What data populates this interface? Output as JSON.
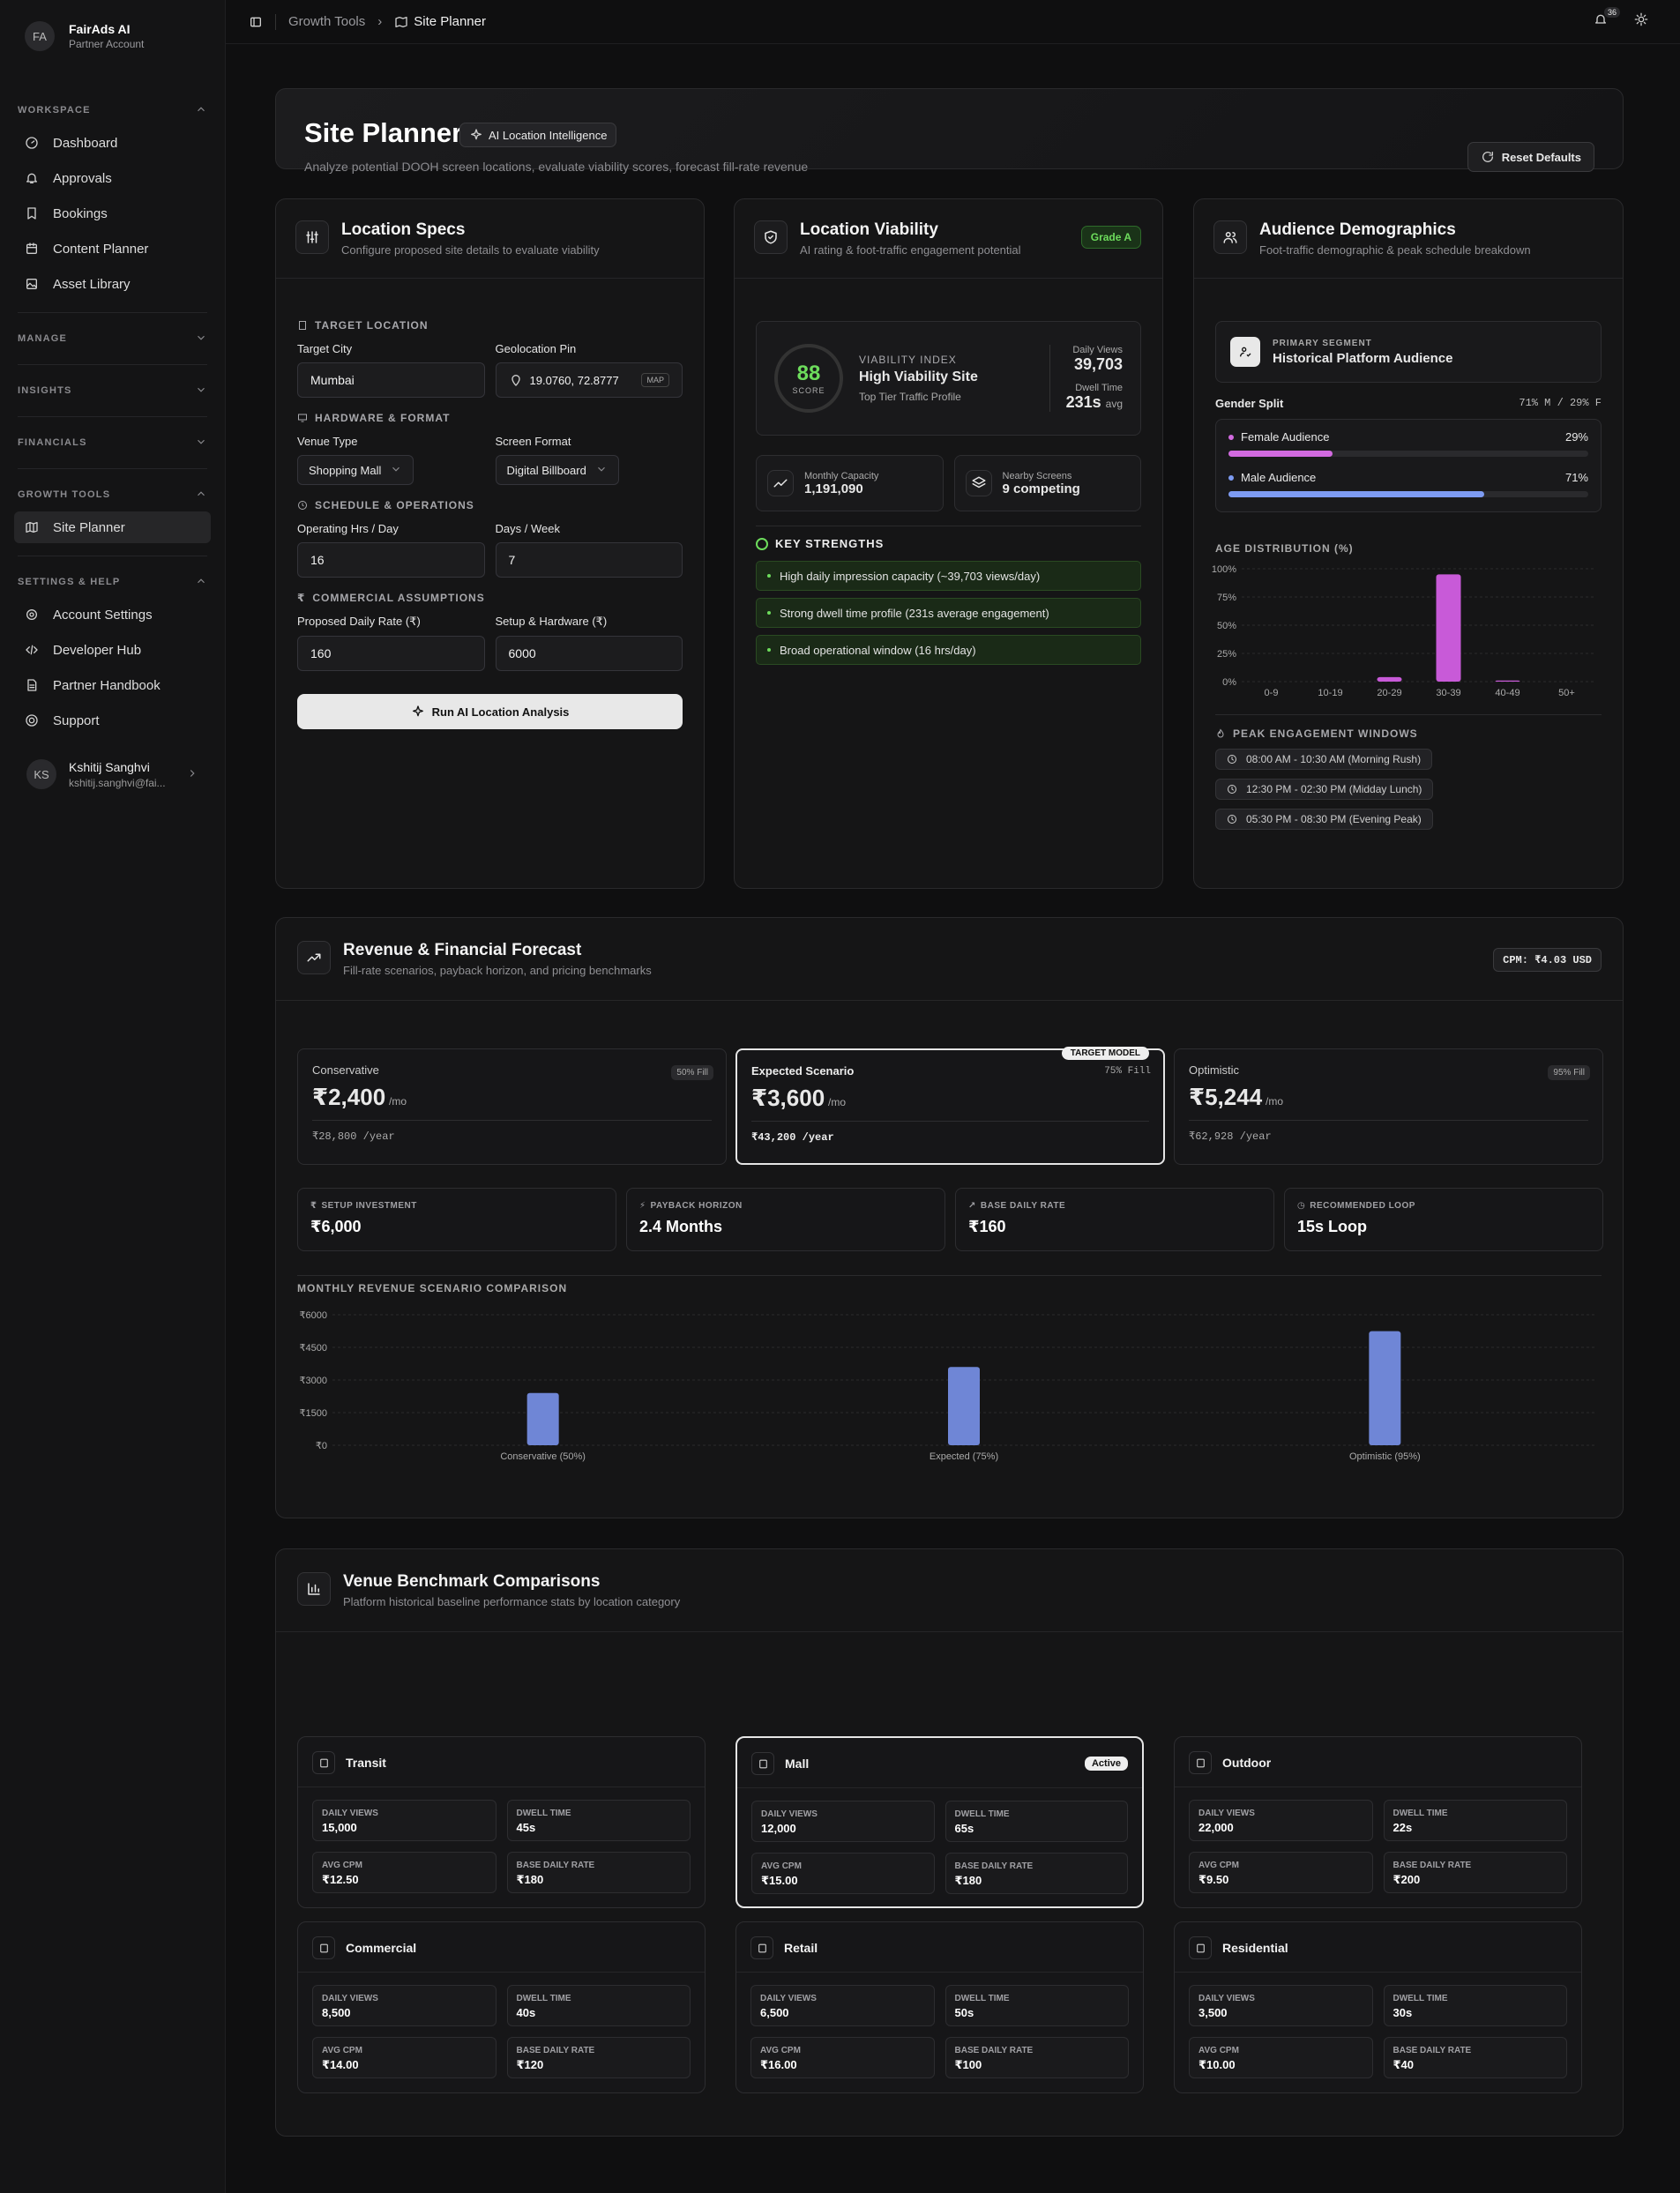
{
  "sidebar": {
    "brand_initials": "FA",
    "brand": "FairAds AI",
    "account": "Partner Account",
    "workspace_label": "WORKSPACE",
    "items": [
      {
        "label": "Dashboard"
      },
      {
        "label": "Approvals"
      },
      {
        "label": "Bookings"
      },
      {
        "label": "Content Planner"
      },
      {
        "label": "Asset Library"
      }
    ],
    "manage": "MANAGE",
    "insights": "INSIGHTS",
    "financials": "FINANCIALS",
    "growth": "GROWTH TOOLS",
    "site_planner": "Site Planner",
    "settings": "SETTINGS & HELP",
    "settings_items": [
      {
        "label": "Account Settings"
      },
      {
        "label": "Developer Hub"
      },
      {
        "label": "Partner Handbook"
      },
      {
        "label": "Support"
      }
    ],
    "user": {
      "initials": "KS",
      "name": "Kshitij Sanghvi",
      "email": "kshitij.sanghvi@fai..."
    }
  },
  "topbar": {
    "crumb1": "Growth Tools",
    "crumb2": "Site Planner",
    "notif_count": "36"
  },
  "hero": {
    "title": "Site Planner",
    "pill": "AI Location Intelligence",
    "desc": "Analyze potential DOOH screen locations, evaluate viability scores, forecast fill-rate revenue",
    "reset": "Reset Defaults"
  },
  "specs": {
    "title": "Location Specs",
    "sub": "Configure proposed site details to evaluate viability",
    "target_loc": "TARGET LOCATION",
    "city_label": "Target City",
    "city": "Mumbai",
    "geo_label": "Geolocation Pin",
    "geo": "19.0760, 72.8777",
    "map": "MAP",
    "hw": "HARDWARE & FORMAT",
    "venue_label": "Venue Type",
    "venue": "Shopping Mall",
    "format_label": "Screen Format",
    "format": "Digital Billboard",
    "sched": "SCHEDULE & OPERATIONS",
    "hrs_label": "Operating Hrs / Day",
    "hrs": "16",
    "days_label": "Days / Week",
    "days": "7",
    "comm": "COMMERCIAL ASSUMPTIONS",
    "rate_label": "Proposed Daily Rate (₹)",
    "rate": "160",
    "setup_label": "Setup & Hardware (₹)",
    "setup": "6000",
    "run": "Run AI Location Analysis"
  },
  "viability": {
    "title": "Location Viability",
    "sub": "AI rating & foot-traffic engagement potential",
    "grade": "Grade A",
    "score": "88",
    "score_label": "SCORE",
    "index_label": "VIABILITY INDEX",
    "index": "High Viability Site",
    "tier": "Top Tier Traffic Profile",
    "dv_label": "Daily Views",
    "dv": "39,703",
    "dt_label": "Dwell Time",
    "dt": "231s",
    "dt_unit": "avg",
    "cap_label": "Monthly Capacity",
    "cap": "1,191,090",
    "near_label": "Nearby Screens",
    "near": "9 competing",
    "ks": "KEY STRENGTHS",
    "strengths": [
      "High daily impression capacity (~39,703 views/day)",
      "Strong dwell time profile (231s average engagement)",
      "Broad operational window (16 hrs/day)"
    ]
  },
  "audience": {
    "title": "Audience Demographics",
    "sub": "Foot-traffic demographic & peak schedule breakdown",
    "primary_label": "PRIMARY SEGMENT",
    "primary": "Historical Platform Audience",
    "gender_label": "Gender Split",
    "gender_ratio": "71% M / 29% F",
    "female_label": "Female Audience",
    "female": "29%",
    "female_value": 0.29,
    "male_label": "Male Audience",
    "male": "71%",
    "male_value": 0.71,
    "age_label": "AGE DISTRIBUTION (%)",
    "peak_label": "PEAK ENGAGEMENT WINDOWS",
    "peaks": [
      "08:00 AM - 10:30 AM (Morning Rush)",
      "12:30 PM - 02:30 PM (Midday Lunch)",
      "05:30 PM - 08:30 PM (Evening Peak)"
    ]
  },
  "revenue": {
    "title": "Revenue & Financial Forecast",
    "sub": "Fill-rate scenarios, payback horizon, and pricing benchmarks",
    "cpm": "CPM: ₹4.03 USD",
    "scenarios": [
      {
        "name": "Conservative",
        "fill": "50% Fill",
        "value": "₹2,400",
        "unit": "/mo",
        "year": "₹28,800 /year"
      },
      {
        "name": "Expected Scenario",
        "fill": "75% Fill",
        "value": "₹3,600",
        "unit": "/mo",
        "year": "₹43,200 /year",
        "tag": "TARGET MODEL"
      },
      {
        "name": "Optimistic",
        "fill": "95% Fill",
        "value": "₹5,244",
        "unit": "/mo",
        "year": "₹62,928 /year"
      }
    ],
    "metrics": [
      {
        "label": "SETUP INVESTMENT",
        "value": "₹6,000"
      },
      {
        "label": "PAYBACK HORIZON",
        "value": "2.4 Months"
      },
      {
        "label": "BASE DAILY RATE",
        "value": "₹160"
      },
      {
        "label": "RECOMMENDED LOOP",
        "value": "15s Loop"
      }
    ],
    "chart_title": "MONTHLY REVENUE SCENARIO COMPARISON"
  },
  "benchmarks": {
    "title": "Venue Benchmark Comparisons",
    "sub": "Platform historical baseline performance stats by location category",
    "active": "Active",
    "labels": {
      "dv": "DAILY VIEWS",
      "dt": "DWELL TIME",
      "cpm": "AVG CPM",
      "rate": "BASE DAILY RATE"
    },
    "venues": [
      {
        "name": "Transit",
        "dv": "15,000",
        "dt": "45s",
        "cpm": "₹12.50",
        "rate": "₹180"
      },
      {
        "name": "Mall",
        "dv": "12,000",
        "dt": "65s",
        "cpm": "₹15.00",
        "rate": "₹180"
      },
      {
        "name": "Outdoor",
        "dv": "22,000",
        "dt": "22s",
        "cpm": "₹9.50",
        "rate": "₹200"
      },
      {
        "name": "Commercial",
        "dv": "8,500",
        "dt": "40s",
        "cpm": "₹14.00",
        "rate": "₹120"
      },
      {
        "name": "Retail",
        "dv": "6,500",
        "dt": "50s",
        "cpm": "₹16.00",
        "rate": "₹100"
      },
      {
        "name": "Residential",
        "dv": "3,500",
        "dt": "30s",
        "cpm": "₹10.00",
        "rate": "₹40"
      }
    ]
  },
  "chart_data": [
    {
      "type": "bar",
      "title": "AGE DISTRIBUTION (%)",
      "categories": [
        "0-9",
        "10-19",
        "20-29",
        "30-39",
        "40-49",
        "50+"
      ],
      "values": [
        0,
        0,
        4,
        95,
        1,
        0
      ],
      "ylim": [
        0,
        100
      ],
      "yticks": [
        "0%",
        "25%",
        "50%",
        "75%",
        "100%"
      ],
      "colors": {
        "bar": "#c85ad8"
      }
    },
    {
      "type": "bar",
      "title": "MONTHLY REVENUE SCENARIO COMPARISON",
      "categories": [
        "Conservative (50%)",
        "Expected (75%)",
        "Optimistic (95%)"
      ],
      "values": [
        2400,
        3600,
        5244
      ],
      "ylim": [
        0,
        6000
      ],
      "yticks": [
        "₹0",
        "₹1500",
        "₹3000",
        "₹4500",
        "₹6000"
      ],
      "colors": {
        "bar": "#6f86d6"
      }
    }
  ]
}
